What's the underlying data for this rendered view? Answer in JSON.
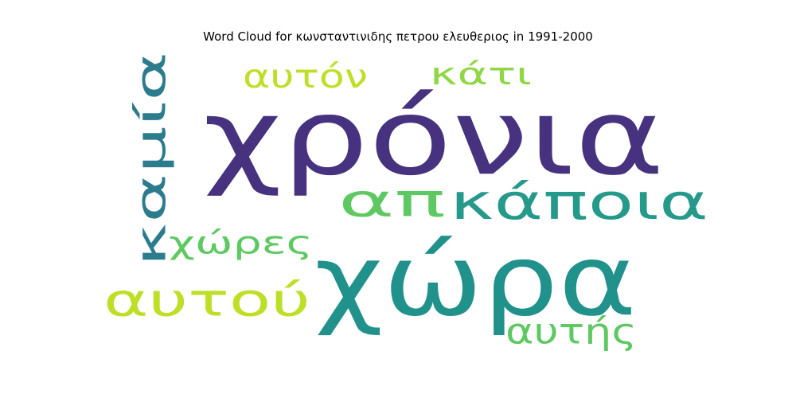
{
  "chart_data": {
    "type": "wordcloud",
    "title": "Word Cloud for κωνσταντινιδης πετρου ελευθεριος in 1991-2000",
    "words": [
      {
        "text": "χρόνια",
        "color": "#46327e"
      },
      {
        "text": "χώρα",
        "color": "#21918c"
      },
      {
        "text": "καμία",
        "color": "#2c7c8e"
      },
      {
        "text": "απ",
        "color": "#5ec962"
      },
      {
        "text": "κάποια",
        "color": "#25998a"
      },
      {
        "text": "αυτού",
        "color": "#bddf26"
      },
      {
        "text": "αυτόν",
        "color": "#bddf26"
      },
      {
        "text": "κάτι",
        "color": "#8fd744"
      },
      {
        "text": "χώρες",
        "color": "#5ec962"
      },
      {
        "text": "αυτής",
        "color": "#5ec962"
      }
    ]
  }
}
